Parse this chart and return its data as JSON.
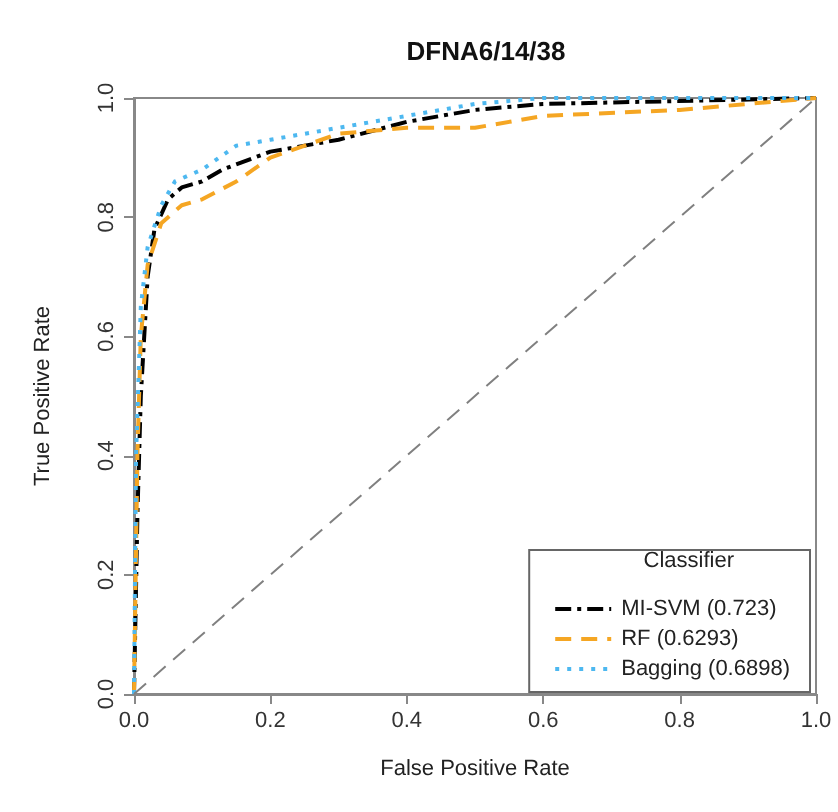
{
  "chart_data": {
    "type": "line",
    "title": "DFNA6/14/38",
    "xlabel": "False Positive Rate",
    "ylabel": "True Positive Rate",
    "legend_title": "Classifier",
    "xlim": [
      0,
      1
    ],
    "ylim": [
      0,
      1
    ],
    "xticks": [
      {
        "value": 0,
        "label": "0.0"
      },
      0.2,
      0.4,
      0.6,
      0.8,
      {
        "value": 1,
        "label": "1.0"
      }
    ],
    "yticks": [
      {
        "value": 0,
        "label": "0.0"
      },
      0.2,
      0.4,
      0.6,
      0.8,
      {
        "value": 1,
        "label": "1.0"
      }
    ],
    "grid": false,
    "legend": "bottom right",
    "marker": "none",
    "series": [
      {
        "name": "MI-SVM (0.723)",
        "color": "#000000",
        "line_style": "dashdot",
        "x": [
          0,
          0.005,
          0.01,
          0.02,
          0.03,
          0.05,
          0.07,
          0.1,
          0.13,
          0.2,
          0.3,
          0.4,
          0.5,
          0.6,
          1
        ],
        "values": [
          0,
          0.3,
          0.5,
          0.7,
          0.78,
          0.83,
          0.85,
          0.86,
          0.88,
          0.91,
          0.93,
          0.96,
          0.98,
          0.99,
          1
        ]
      },
      {
        "name": "RF (0.6293)",
        "color": "#f5a623",
        "line_style": "dashed",
        "x": [
          0,
          0.005,
          0.01,
          0.02,
          0.04,
          0.07,
          0.1,
          0.15,
          0.2,
          0.3,
          0.4,
          0.5,
          0.6,
          0.8,
          0.9,
          1
        ],
        "values": [
          0,
          0.4,
          0.6,
          0.72,
          0.79,
          0.82,
          0.83,
          0.86,
          0.9,
          0.94,
          0.95,
          0.95,
          0.97,
          0.98,
          0.99,
          1
        ]
      },
      {
        "name": "Bagging (0.6898)",
        "color": "#4db8f0",
        "line_style": "dotted",
        "x": [
          0,
          0.003,
          0.01,
          0.02,
          0.04,
          0.06,
          0.1,
          0.15,
          0.2,
          0.3,
          0.4,
          0.5,
          0.6,
          1
        ],
        "values": [
          0,
          0.4,
          0.65,
          0.75,
          0.82,
          0.86,
          0.88,
          0.92,
          0.93,
          0.95,
          0.97,
          0.99,
          1,
          1
        ]
      },
      {
        "color": "#808080",
        "line_style": "dashed",
        "x": [
          0,
          1
        ],
        "values": [
          0,
          1
        ]
      }
    ]
  }
}
